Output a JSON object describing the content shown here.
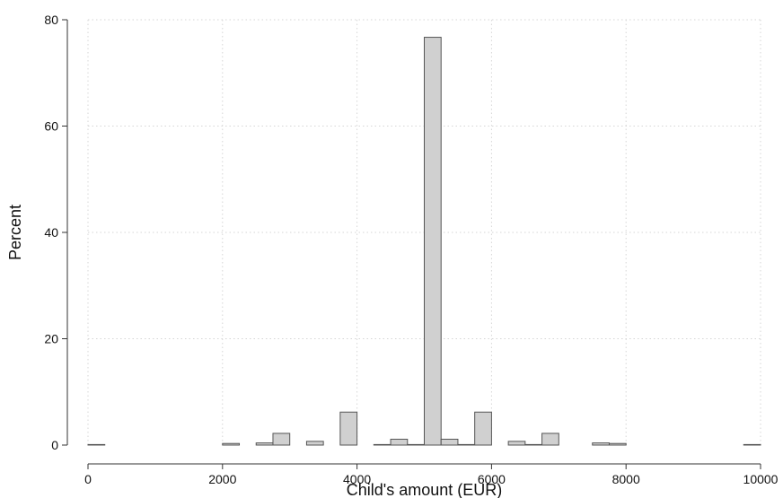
{
  "chart_data": {
    "type": "bar",
    "xlabel": "Child's amount (EUR)",
    "ylabel": "Percent",
    "xlim": [
      0,
      10000
    ],
    "ylim": [
      0,
      80
    ],
    "x_ticks": [
      0,
      2000,
      4000,
      6000,
      8000,
      10000
    ],
    "y_ticks": [
      0,
      20,
      40,
      60,
      80
    ],
    "grid": true,
    "bin_width": 250,
    "bins": [
      {
        "x": 0,
        "value": 0.1
      },
      {
        "x": 2000,
        "value": 0.3
      },
      {
        "x": 2500,
        "value": 0.4
      },
      {
        "x": 2750,
        "value": 2.2
      },
      {
        "x": 3250,
        "value": 0.7
      },
      {
        "x": 3750,
        "value": 6.2
      },
      {
        "x": 4250,
        "value": 0.1
      },
      {
        "x": 4500,
        "value": 1.1
      },
      {
        "x": 4750,
        "value": 0.1
      },
      {
        "x": 5000,
        "value": 76.7
      },
      {
        "x": 5250,
        "value": 1.1
      },
      {
        "x": 5500,
        "value": 0.1
      },
      {
        "x": 5750,
        "value": 6.2
      },
      {
        "x": 6250,
        "value": 0.7
      },
      {
        "x": 6500,
        "value": 0.1
      },
      {
        "x": 6750,
        "value": 2.2
      },
      {
        "x": 7500,
        "value": 0.4
      },
      {
        "x": 7750,
        "value": 0.3
      },
      {
        "x": 9750,
        "value": 0.1
      }
    ]
  }
}
